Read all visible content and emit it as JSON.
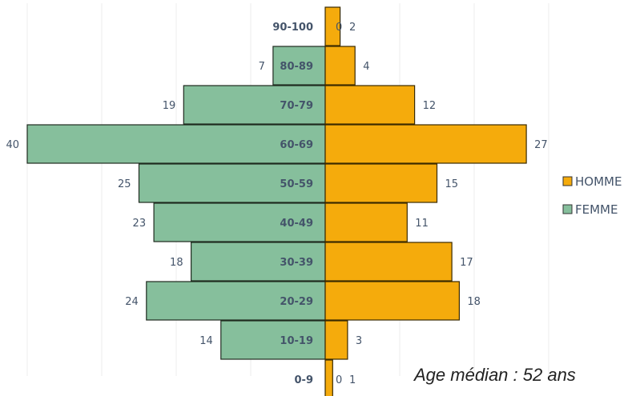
{
  "chart_data": {
    "type": "bar",
    "orientation": "horizontal-population-pyramid",
    "categories": [
      "90-100",
      "80-89",
      "70-79",
      "60-69",
      "50-59",
      "40-49",
      "30-39",
      "20-29",
      "10-19",
      "0-9"
    ],
    "series": [
      {
        "name": "HOMME",
        "values": [
          2,
          4,
          12,
          27,
          15,
          11,
          17,
          18,
          3,
          1
        ],
        "color": "#f5ab0c"
      },
      {
        "name": "FEMME",
        "values": [
          0,
          7,
          19,
          40,
          25,
          23,
          18,
          24,
          14,
          0
        ],
        "color": "#86bf9c"
      }
    ],
    "legend_position": "right",
    "grid": "vertical",
    "xlim": [
      -40,
      30
    ]
  },
  "annotation": "Age médian : 52 ans"
}
